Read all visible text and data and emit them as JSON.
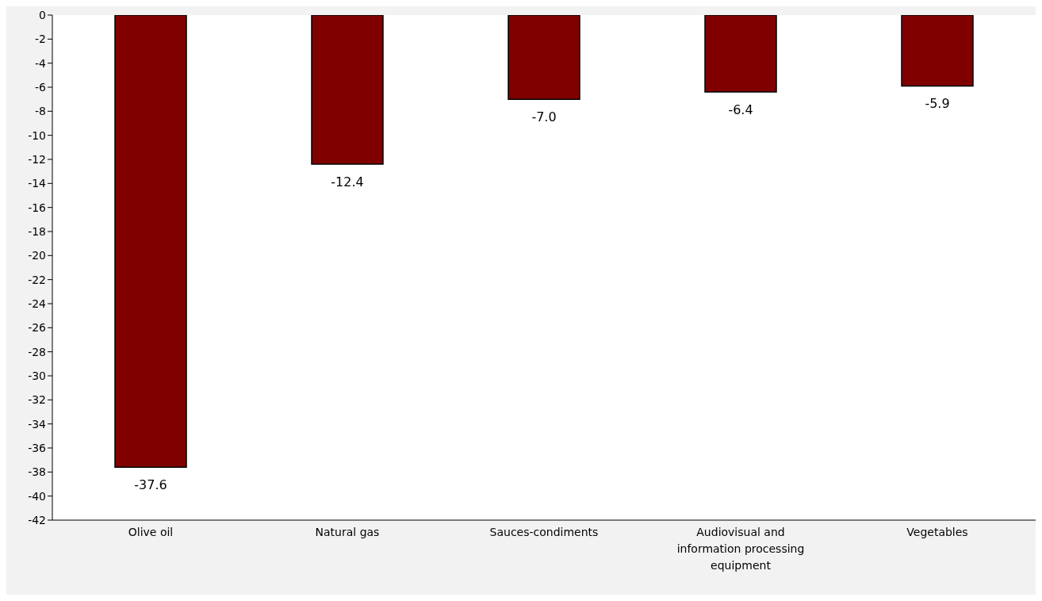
{
  "chart_data": {
    "type": "bar",
    "categories": [
      "Olive oil",
      "Natural gas",
      "Sauces-condiments",
      "Audiovisual and information processing equipment",
      "Vegetables"
    ],
    "values": [
      -37.6,
      -12.4,
      -7.0,
      -6.4,
      -5.9
    ],
    "value_labels": [
      "-37.6",
      "-12.4",
      "-7.0",
      "-6.4",
      "-5.9"
    ],
    "color": "#800000",
    "ylim": [
      -42,
      0
    ],
    "yticks": [
      0,
      -2,
      -4,
      -6,
      -8,
      -10,
      -12,
      -14,
      -16,
      -18,
      -20,
      -22,
      -24,
      -26,
      -28,
      -30,
      -32,
      -34,
      -36,
      -38,
      -40,
      -42
    ],
    "grid": false,
    "legend": false
  }
}
